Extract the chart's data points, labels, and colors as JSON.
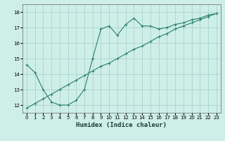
{
  "title": "",
  "xlabel": "Humidex (Indice chaleur)",
  "ylabel": "",
  "background_color": "#ceeee8",
  "grid_color": "#aad4cc",
  "line_color": "#2a8070",
  "xlim": [
    -0.5,
    23.5
  ],
  "ylim": [
    11.5,
    18.5
  ],
  "xticks": [
    0,
    1,
    2,
    3,
    4,
    5,
    6,
    7,
    8,
    9,
    10,
    11,
    12,
    13,
    14,
    15,
    16,
    17,
    18,
    19,
    20,
    21,
    22,
    23
  ],
  "yticks": [
    12,
    13,
    14,
    15,
    16,
    17,
    18
  ],
  "curve1_x": [
    0,
    1,
    2,
    3,
    4,
    5,
    6,
    7,
    8,
    9,
    10,
    11,
    12,
    13,
    14,
    15,
    16,
    17,
    18,
    19,
    20,
    21,
    22,
    23
  ],
  "curve1_y": [
    14.6,
    14.1,
    13.0,
    12.2,
    12.0,
    12.0,
    12.3,
    13.0,
    15.0,
    16.9,
    17.1,
    16.5,
    17.2,
    17.6,
    17.1,
    17.1,
    16.9,
    17.0,
    17.2,
    17.3,
    17.5,
    17.6,
    17.8,
    17.9
  ],
  "curve2_x": [
    0,
    1,
    2,
    3,
    4,
    5,
    6,
    7,
    8,
    9,
    10,
    11,
    12,
    13,
    14,
    15,
    16,
    17,
    18,
    19,
    20,
    21,
    22,
    23
  ],
  "curve2_y": [
    11.8,
    12.1,
    12.4,
    12.7,
    13.0,
    13.3,
    13.6,
    13.9,
    14.2,
    14.5,
    14.7,
    15.0,
    15.3,
    15.6,
    15.8,
    16.1,
    16.4,
    16.6,
    16.9,
    17.1,
    17.3,
    17.5,
    17.7,
    17.9
  ]
}
